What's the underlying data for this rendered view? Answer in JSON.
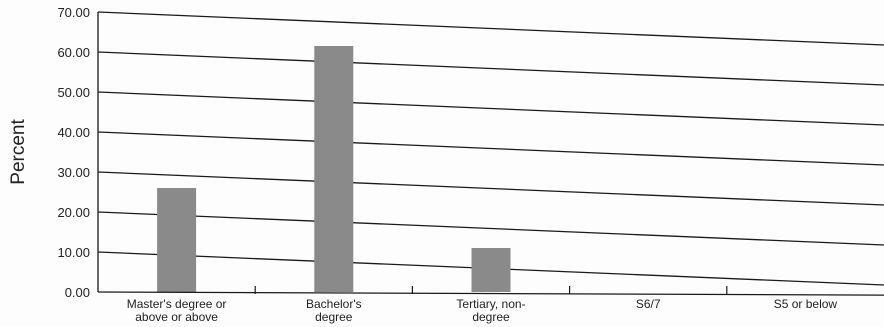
{
  "chart_data": {
    "type": "bar",
    "title": "",
    "xlabel": "",
    "ylabel": "Percent",
    "ylim": [
      0,
      70
    ],
    "y_ticks": [
      "0.00",
      "10.00",
      "20.00",
      "30.00",
      "40.00",
      "50.00",
      "60.00",
      "70.00"
    ],
    "grid": true,
    "categories": [
      [
        "Master's degree or",
        "above or above"
      ],
      [
        "Bachelor's",
        "degree"
      ],
      [
        "Tertiary, non-",
        "degree"
      ],
      [
        "S6/7"
      ],
      [
        "S5 or below"
      ]
    ],
    "values": [
      26.0,
      61.5,
      11.0,
      0,
      0
    ],
    "colors": {
      "bar": "#8a8a8a",
      "grid": "#1a1a1a",
      "axis": "#1a1a1a"
    }
  }
}
